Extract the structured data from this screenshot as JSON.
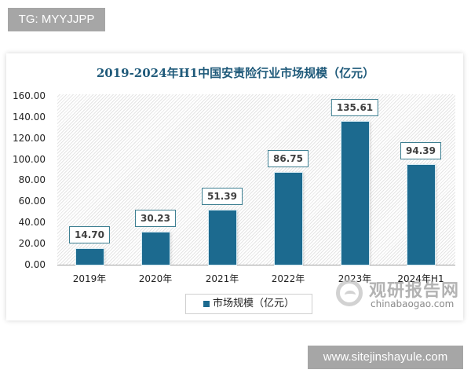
{
  "overlay": {
    "top_badge": "TG: MYYJJPP",
    "bottom_badge": "www.sitejinshayule.com"
  },
  "watermark": {
    "cn": "观研报告网",
    "en": "chinabaogao.com"
  },
  "colors": {
    "bar": "#1c6a8f",
    "title": "#1f5a7a",
    "label_border": "#3c7e90"
  },
  "chart_data": {
    "type": "bar",
    "title": "2019-2024年H1中国安责险行业市场规模（亿元）",
    "xlabel": "",
    "ylabel": "",
    "categories": [
      "2019年",
      "2020年",
      "2021年",
      "2022年",
      "2023年",
      "2024年H1"
    ],
    "series": [
      {
        "name": "市场规模（亿元）",
        "values": [
          14.7,
          30.23,
          51.39,
          86.75,
          135.61,
          94.39
        ]
      }
    ],
    "value_labels": [
      "14.70",
      "30.23",
      "51.39",
      "86.75",
      "135.61",
      "94.39"
    ],
    "ylim": [
      0,
      160
    ],
    "yticks": [
      "0.00",
      "20.00",
      "40.00",
      "60.00",
      "80.00",
      "100.00",
      "120.00",
      "140.00",
      "160.00"
    ],
    "grid": false,
    "legend_position": "bottom",
    "legend": [
      "市场规模（亿元）"
    ]
  }
}
